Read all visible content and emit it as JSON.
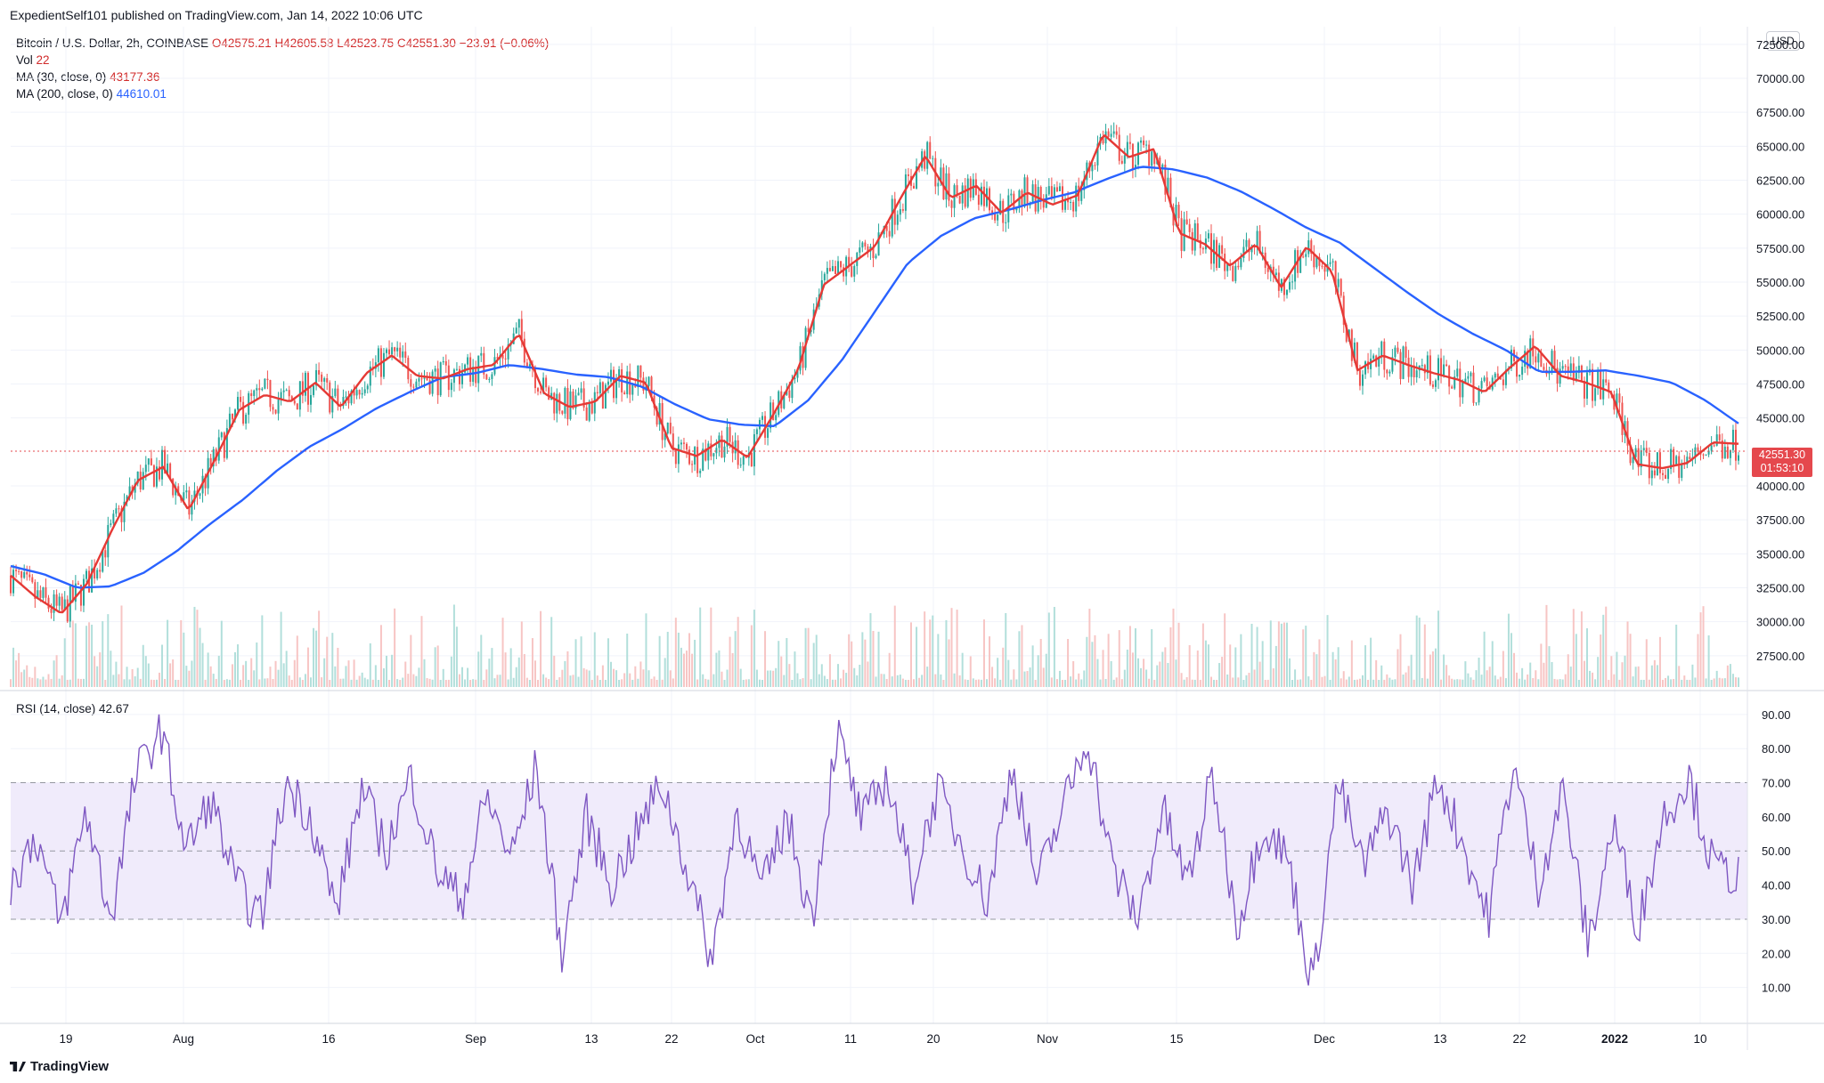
{
  "attribution": "ExpedientSelf101 published on TradingView.com, Jan 14, 2022 10:06 UTC",
  "legend": {
    "symbol": "Bitcoin / U.S. Dollar, 2h, COINBASE",
    "open": "O42575.21",
    "high": "H42605.58",
    "low": "L42523.75",
    "close": "C42551.30",
    "change": "−23.91 (−0.06%)",
    "vol_label": "Vol",
    "vol_value": "22",
    "ma30_label": "MA (30, close, 0)",
    "ma30_value": "43177.36",
    "ma200_label": "MA (200, close, 0)",
    "ma200_value": "44610.01",
    "rsi_label": "RSI (14, close)",
    "rsi_value": "42.67"
  },
  "currency_badge": "USD",
  "last_price_tag": {
    "price": "42551.30",
    "countdown": "01:53:10"
  },
  "footer_brand": "TradingView",
  "colors": {
    "ma30": "#e53935",
    "ma200": "#2962ff",
    "rsi": "#7e57c2",
    "up": "#26a69a",
    "down": "#ef5350",
    "rsi_band": "#f0ebfb"
  },
  "chart_data": [
    {
      "type": "line",
      "x_ticks": [
        "19",
        "Aug",
        "16",
        "Sep",
        "13",
        "22",
        "Oct",
        "11",
        "20",
        "Nov",
        "15",
        "Dec",
        "13",
        "22",
        "2022",
        "10"
      ],
      "y_axis_labels": [
        "72500.00",
        "70000.00",
        "67500.00",
        "65000.00",
        "62500.00",
        "60000.00",
        "57500.00",
        "55000.00",
        "52500.00",
        "50000.00",
        "47500.00",
        "45000.00",
        "40000.00",
        "37500.00",
        "35000.00",
        "32500.00",
        "30000.00",
        "27500.00"
      ],
      "ylim": [
        25000,
        73800
      ],
      "last_price": 42551.3,
      "series": [
        {
          "name": "MA (30, close, 0)",
          "y": [
            33400,
            31800,
            30600,
            32800,
            36800,
            40400,
            41400,
            38200,
            41800,
            45600,
            46700,
            46200,
            47600,
            45800,
            48300,
            49600,
            48100,
            47900,
            48600,
            48900,
            51200,
            46800,
            45800,
            46200,
            48100,
            47600,
            42800,
            42200,
            43400,
            42100,
            45200,
            48600,
            54800,
            56200,
            57600,
            61100,
            64300,
            61200,
            62100,
            60100,
            61600,
            60700,
            61400,
            65900,
            64200,
            64800,
            58600,
            57800,
            56200,
            57800,
            54600,
            57600,
            55800,
            48500,
            49600,
            48900,
            48300,
            47800,
            46900,
            48700,
            50300,
            48100,
            47600,
            46900,
            41600,
            41300,
            41700,
            43200,
            43100
          ]
        },
        {
          "name": "MA (200, close, 0)",
          "y": [
            34100,
            33500,
            32500,
            32600,
            33600,
            35200,
            37200,
            39000,
            41100,
            42900,
            44200,
            45700,
            46900,
            48000,
            48300,
            48900,
            48600,
            48200,
            48000,
            47300,
            46000,
            44900,
            44500,
            44400,
            46300,
            49200,
            52800,
            56400,
            58400,
            59700,
            60300,
            61000,
            61600,
            62600,
            63500,
            63300,
            62700,
            61700,
            60400,
            59000,
            57900,
            56100,
            54300,
            52600,
            51200,
            50000,
            48400,
            48400,
            48500,
            48100,
            47600,
            46300,
            44600
          ]
        },
        {
          "name": "RSI (14, close)",
          "y": [
            40,
            55,
            28,
            62,
            30,
            72,
            86,
            50,
            65,
            40,
            30,
            70,
            60,
            32,
            68,
            50,
            72,
            45,
            35,
            66,
            48,
            75,
            20,
            60,
            40,
            55,
            70,
            45,
            18,
            62,
            38,
            60,
            30,
            85,
            58,
            72,
            40,
            68,
            52,
            35,
            76,
            40,
            62,
            84,
            45,
            30,
            62,
            40,
            72,
            28,
            58,
            48,
            10,
            70,
            45,
            62,
            40,
            72,
            52,
            30,
            76,
            40,
            68,
            22,
            58,
            28,
            60,
            72,
            45,
            42.67
          ]
        }
      ],
      "reference_lines_rsi": [
        30,
        50,
        70
      ],
      "rsi_axis_labels": [
        "90.00",
        "80.00",
        "70.00",
        "60.00",
        "50.00",
        "40.00",
        "30.00",
        "20.00",
        "10.00"
      ]
    }
  ]
}
